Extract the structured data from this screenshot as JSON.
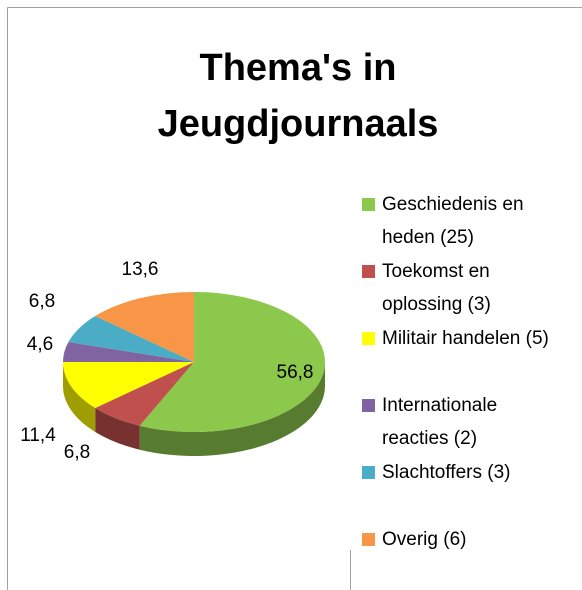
{
  "chart_data": {
    "type": "pie3d",
    "title": "Thema's in Jeugdjournaals",
    "categories": [
      "Geschiedenis en heden (25)",
      "Toekomst en oplossing (3)",
      "Militair handelen (5)",
      "Internationale reacties (2)",
      "Slachtoffers (3)",
      "Overig (6)"
    ],
    "values": [
      56.8,
      6.8,
      11.4,
      4.6,
      6.8,
      13.6
    ],
    "value_labels": [
      "56,8",
      "6,8",
      "11,4",
      "4,6",
      "6,8",
      "13,6"
    ],
    "colors": [
      "#8cc84b",
      "#c0504d",
      "#ffff00",
      "#8064a2",
      "#4bacc6",
      "#f79646"
    ],
    "legend": "right"
  }
}
